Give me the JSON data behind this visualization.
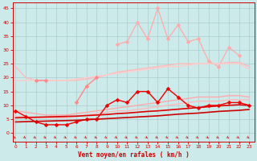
{
  "xlabel": "Vent moyen/en rafales ( km/h )",
  "background_color": "#cceaea",
  "grid_color": "#aacccc",
  "x_ticks": [
    0,
    1,
    2,
    3,
    4,
    5,
    6,
    7,
    8,
    9,
    10,
    11,
    12,
    13,
    14,
    15,
    16,
    17,
    18,
    19,
    20,
    21,
    22,
    23
  ],
  "y_ticks": [
    0,
    5,
    10,
    15,
    20,
    25,
    30,
    35,
    40,
    45
  ],
  "ylim": [
    -3,
    47
  ],
  "xlim": [
    -0.3,
    23.5
  ],
  "series": [
    {
      "name": "upper_light_pink_spiky",
      "color": "#ffaaaa",
      "linewidth": 0.9,
      "marker": "D",
      "markersize": 2.5,
      "y": [
        null,
        null,
        null,
        null,
        null,
        null,
        null,
        null,
        null,
        null,
        32,
        33,
        40,
        34,
        45,
        34,
        39,
        33,
        34,
        26,
        24,
        31,
        28,
        null
      ]
    },
    {
      "name": "upper_band_top",
      "color": "#ffbbbb",
      "linewidth": 1.0,
      "marker": null,
      "y": [
        24,
        20,
        19,
        19,
        19,
        19,
        19,
        19.5,
        20,
        21,
        22,
        22.5,
        23,
        23.5,
        24,
        24.5,
        25,
        25,
        25,
        25,
        25,
        25.5,
        25.5,
        24
      ]
    },
    {
      "name": "upper_band_mid",
      "color": "#ffcccc",
      "linewidth": 1.0,
      "marker": null,
      "y": [
        19,
        19,
        19,
        19,
        19,
        19,
        19.5,
        20,
        20.5,
        21,
        21.5,
        22,
        22.5,
        23,
        23.5,
        24,
        24,
        24.5,
        25,
        25,
        25,
        25,
        25,
        23
      ]
    },
    {
      "name": "medium_pink_zigzag",
      "color": "#ff8888",
      "linewidth": 1.0,
      "marker": "D",
      "markersize": 2.5,
      "y": [
        null,
        null,
        19,
        19,
        null,
        null,
        11,
        17,
        20,
        null,
        null,
        null,
        null,
        null,
        null,
        null,
        null,
        null,
        null,
        null,
        null,
        null,
        null,
        null
      ]
    },
    {
      "name": "lower_band_top",
      "color": "#ffaaaa",
      "linewidth": 1.0,
      "marker": null,
      "y": [
        8,
        7.5,
        7,
        6.5,
        6.5,
        6.5,
        7,
        7.5,
        8,
        8.5,
        9,
        9.5,
        10,
        10.5,
        11,
        11.5,
        12,
        12.5,
        13,
        13,
        13,
        13.5,
        13.5,
        13
      ]
    },
    {
      "name": "lower_band_bottom",
      "color": "#ffbbbb",
      "linewidth": 1.0,
      "marker": null,
      "y": [
        6,
        6,
        5.5,
        5.5,
        5.5,
        5.5,
        6,
        6.5,
        7,
        7.5,
        8,
        8,
        8.5,
        9,
        9.5,
        10,
        10.5,
        11,
        11.5,
        11.5,
        11.5,
        12,
        12,
        12
      ]
    },
    {
      "name": "red_zigzag",
      "color": "#ee0000",
      "linewidth": 1.0,
      "marker": "D",
      "markersize": 2.5,
      "y": [
        8,
        6,
        4,
        3,
        3,
        3,
        4,
        5,
        5,
        10,
        12,
        11,
        15,
        15,
        11,
        16,
        13,
        10,
        9,
        10,
        10,
        11,
        11,
        10
      ]
    },
    {
      "name": "dark_red_slope1",
      "color": "#cc0000",
      "linewidth": 1.2,
      "marker": null,
      "y": [
        4,
        4.1,
        4.2,
        4.3,
        4.4,
        4.5,
        4.6,
        4.8,
        5.0,
        5.2,
        5.4,
        5.6,
        5.8,
        6.0,
        6.2,
        6.5,
        6.8,
        7.0,
        7.2,
        7.5,
        7.8,
        8.0,
        8.2,
        8.5
      ]
    },
    {
      "name": "dark_red_slope2",
      "color": "#dd0000",
      "linewidth": 1.2,
      "marker": null,
      "y": [
        5.5,
        5.6,
        5.7,
        5.8,
        5.9,
        6.0,
        6.1,
        6.3,
        6.5,
        6.7,
        7.0,
        7.2,
        7.5,
        7.8,
        8.0,
        8.3,
        8.6,
        8.9,
        9.2,
        9.5,
        9.8,
        10.0,
        10.2,
        10.0
      ]
    }
  ],
  "arrow_color": "#cc0000",
  "tick_color": "#cc0000",
  "label_color": "#cc0000"
}
